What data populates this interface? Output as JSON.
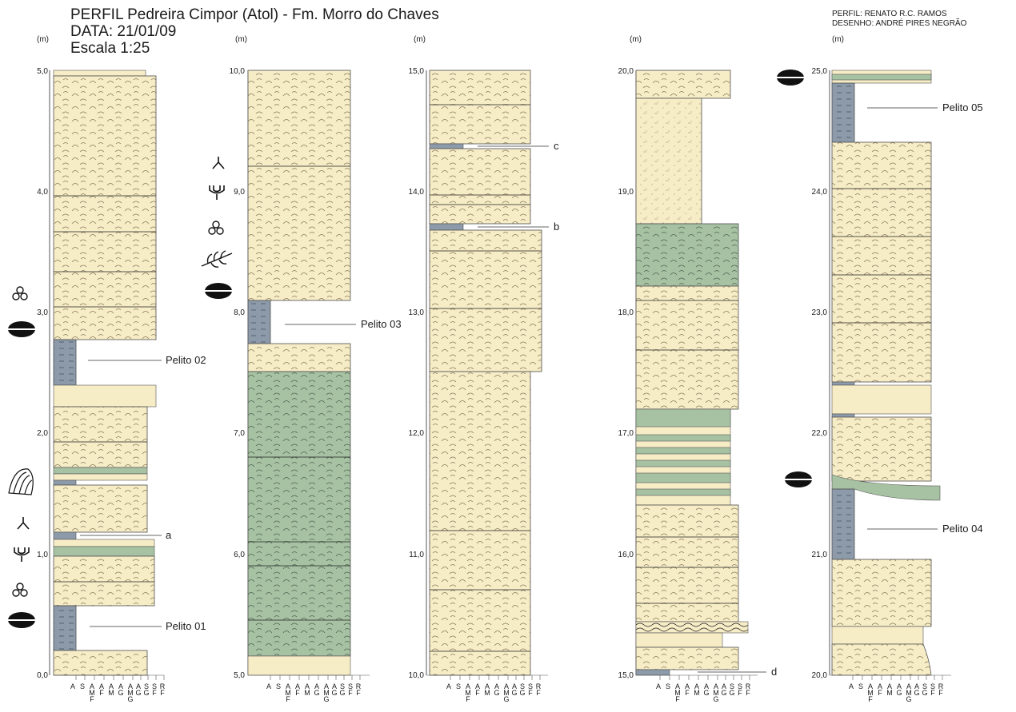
{
  "header": {
    "title": "PERFIL Pedreira Cimpor (Atol) - Fm. Morro do Chaves",
    "date": "DATA: 21/01/09",
    "scale": "Escala 1:25",
    "author": "PERFIL: RENATO R.C. RAMOS",
    "drawing": "DESENHO: ANDRÉ PIRES NEGRÃO"
  },
  "unit_label": "(m)",
  "grain_scale": [
    "A",
    "S",
    "A\nM\nF",
    "A\nF",
    "A\nM",
    "A\nG",
    "A\nM\nG",
    "A\nG",
    "S\nG",
    "S\nF",
    "R\nF"
  ],
  "colors": {
    "sandstone": "#f6ecc6",
    "green_layer": "#a7c2a3",
    "pelite": "#8c9aaa",
    "outline": "#555555"
  },
  "columns": [
    {
      "ticks": [
        "5,0",
        "4,0",
        "3,0",
        "2,0",
        "1,0",
        "0,0"
      ],
      "labels": [
        {
          "text": "Pelito 02",
          "at_m": 2.6
        },
        {
          "text": "a",
          "at_m": 1.18
        },
        {
          "text": "Pelito 01",
          "at_m": 0.4
        }
      ],
      "icons": [
        {
          "name": "ooid-icon",
          "at_m": 3.15
        },
        {
          "name": "lens-icon",
          "at_m": 2.85
        },
        {
          "name": "shell-icon",
          "at_m": 1.6
        },
        {
          "name": "burrow-y-icon",
          "at_m": 1.3
        },
        {
          "name": "burrow-forked-icon",
          "at_m": 1.03
        },
        {
          "name": "ooid-icon",
          "at_m": 0.73
        },
        {
          "name": "lens-icon",
          "at_m": 0.45
        }
      ]
    },
    {
      "ticks": [
        "10,0",
        "9,0",
        "8,0",
        "7,0",
        "6,0",
        "5,0"
      ],
      "labels": [
        {
          "text": "Pelito 03",
          "at_m": 7.9
        }
      ],
      "icons": [
        {
          "name": "burrow-y-icon",
          "at_m": 9.22
        },
        {
          "name": "burrow-forked-icon",
          "at_m": 8.97
        },
        {
          "name": "ooid-icon",
          "at_m": 8.7
        },
        {
          "name": "plant-fragment-icon",
          "at_m": 8.45
        },
        {
          "name": "lens-icon",
          "at_m": 8.2
        }
      ]
    },
    {
      "ticks": [
        "15,0",
        "14,0",
        "13,0",
        "12,0",
        "11,0",
        "10,0"
      ],
      "labels": [
        {
          "text": "c",
          "at_m": 14.37
        },
        {
          "text": "b",
          "at_m": 13.7
        }
      ],
      "icons": []
    },
    {
      "ticks": [
        "20,0",
        "19,0",
        "18,0",
        "17,0",
        "16,0",
        "15,0"
      ],
      "labels": [
        {
          "text": "d",
          "at_m": 15.02
        }
      ],
      "icons": []
    },
    {
      "ticks": [
        "25,0",
        "24,0",
        "23,0",
        "22,0",
        "21,0",
        "20,0"
      ],
      "labels": [
        {
          "text": "Pelito 05",
          "at_m": 24.67
        },
        {
          "text": "Pelito 04",
          "at_m": 21.22
        }
      ],
      "icons": [
        {
          "name": "lens-icon",
          "at_m": 24.95
        },
        {
          "name": "lens-icon",
          "at_m": 21.65
        }
      ]
    }
  ]
}
